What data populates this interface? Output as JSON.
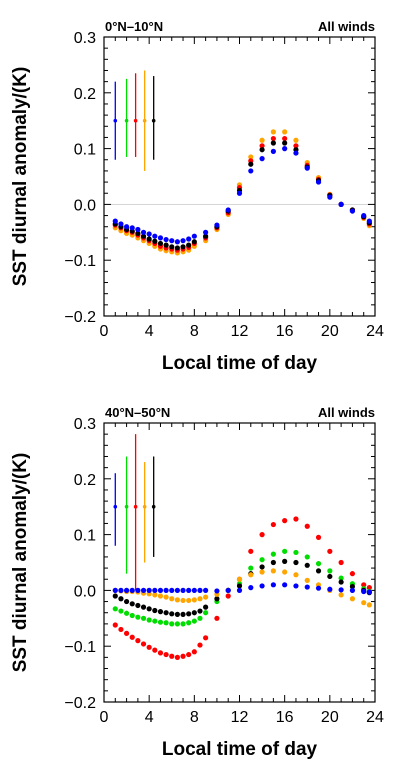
{
  "chart_data": [
    {
      "type": "scatter",
      "region_label": "0°N–10°N",
      "wind_label": "All winds",
      "xlabel": "Local time of day",
      "ylabel": "SST diurnal anomaly/(K)",
      "xlim": [
        0,
        24
      ],
      "ylim": [
        -0.2,
        0.3
      ],
      "xticks": [
        "0",
        "4",
        "8",
        "12",
        "16",
        "20",
        "24"
      ],
      "yticks": [
        "−0.2",
        "−0.1",
        "0.0",
        "0.1",
        "0.2",
        "0.3"
      ],
      "zero_line": true,
      "x": [
        1.0,
        1.5,
        2.0,
        2.5,
        3.0,
        3.5,
        4.0,
        4.5,
        5.0,
        5.5,
        6.0,
        6.5,
        7.0,
        7.5,
        8.0,
        9.0,
        10.0,
        11.0,
        12.0,
        13.0,
        14.0,
        15.0,
        16.0,
        17.0,
        18.0,
        19.0,
        20.0,
        21.0,
        22.0,
        23.0,
        23.5
      ],
      "series": [
        {
          "color": "#ffa500",
          "values": [
            -0.042,
            -0.047,
            -0.052,
            -0.055,
            -0.06,
            -0.065,
            -0.07,
            -0.075,
            -0.08,
            -0.083,
            -0.085,
            -0.087,
            -0.085,
            -0.082,
            -0.075,
            -0.065,
            -0.045,
            -0.018,
            0.035,
            0.085,
            0.115,
            0.13,
            0.13,
            0.115,
            0.075,
            0.048,
            0.018,
            0.0,
            -0.01,
            -0.025,
            -0.038
          ]
        },
        {
          "color": "#ff0000",
          "values": [
            -0.037,
            -0.042,
            -0.047,
            -0.05,
            -0.055,
            -0.06,
            -0.065,
            -0.07,
            -0.075,
            -0.078,
            -0.08,
            -0.082,
            -0.08,
            -0.077,
            -0.07,
            -0.06,
            -0.042,
            -0.015,
            0.03,
            0.078,
            0.105,
            0.118,
            0.118,
            0.105,
            0.07,
            0.045,
            0.017,
            0.0,
            -0.01,
            -0.023,
            -0.035
          ]
        },
        {
          "color": "#000000",
          "values": [
            -0.035,
            -0.04,
            -0.045,
            -0.048,
            -0.052,
            -0.057,
            -0.062,
            -0.066,
            -0.07,
            -0.073,
            -0.076,
            -0.078,
            -0.076,
            -0.073,
            -0.067,
            -0.057,
            -0.04,
            -0.012,
            0.025,
            0.072,
            0.098,
            0.11,
            0.11,
            0.098,
            0.067,
            0.043,
            0.016,
            0.0,
            -0.01,
            -0.022,
            -0.033
          ]
        },
        {
          "color": "#0000ff",
          "values": [
            -0.03,
            -0.035,
            -0.04,
            -0.042,
            -0.045,
            -0.05,
            -0.053,
            -0.057,
            -0.06,
            -0.063,
            -0.065,
            -0.067,
            -0.065,
            -0.062,
            -0.057,
            -0.05,
            -0.037,
            -0.01,
            0.02,
            0.06,
            0.082,
            0.095,
            0.1,
            0.092,
            0.065,
            0.04,
            0.013,
            0.0,
            -0.012,
            -0.02,
            -0.03
          ]
        }
      ],
      "error_bars": [
        {
          "x": 1.0,
          "center": 0.15,
          "low": 0.08,
          "high": 0.22,
          "color": "#0000ff"
        },
        {
          "x": 2.0,
          "center": 0.15,
          "low": 0.085,
          "high": 0.225,
          "color": "#00dd00"
        },
        {
          "x": 2.8,
          "center": 0.15,
          "low": 0.085,
          "high": 0.235,
          "color": "#ff0000"
        },
        {
          "x": 3.6,
          "center": 0.15,
          "low": 0.06,
          "high": 0.24,
          "color": "#ffa500"
        },
        {
          "x": 4.4,
          "center": 0.15,
          "low": 0.08,
          "high": 0.23,
          "color": "#000000"
        }
      ]
    },
    {
      "type": "scatter",
      "region_label": "40°N–50°N",
      "wind_label": "All winds",
      "xlabel": "Local time of day",
      "ylabel": "SST diurnal anomaly/(K)",
      "xlim": [
        0,
        24
      ],
      "ylim": [
        -0.2,
        0.3
      ],
      "xticks": [
        "0",
        "4",
        "8",
        "12",
        "16",
        "20",
        "24"
      ],
      "yticks": [
        "−0.2",
        "−0.1",
        "0.0",
        "0.1",
        "0.2",
        "0.3"
      ],
      "zero_line": false,
      "x": [
        1.0,
        1.5,
        2.0,
        2.5,
        3.0,
        3.5,
        4.0,
        4.5,
        5.0,
        5.5,
        6.0,
        6.5,
        7.0,
        7.5,
        8.0,
        8.5,
        9.0,
        10.0,
        11.0,
        12.0,
        13.0,
        14.0,
        15.0,
        16.0,
        17.0,
        18.0,
        19.0,
        20.0,
        21.0,
        22.0,
        23.0,
        23.5
      ],
      "series": [
        {
          "color": "#ff0000",
          "values": [
            -0.062,
            -0.07,
            -0.077,
            -0.084,
            -0.09,
            -0.096,
            -0.102,
            -0.107,
            -0.112,
            -0.115,
            -0.118,
            -0.12,
            -0.118,
            -0.115,
            -0.11,
            -0.098,
            -0.085,
            -0.05,
            -0.01,
            0.02,
            0.07,
            0.1,
            0.118,
            0.125,
            0.128,
            0.115,
            0.095,
            0.07,
            0.05,
            0.03,
            0.01,
            0.005
          ]
        },
        {
          "color": "#00dd00",
          "values": [
            -0.033,
            -0.037,
            -0.041,
            -0.045,
            -0.048,
            -0.05,
            -0.053,
            -0.055,
            -0.057,
            -0.058,
            -0.06,
            -0.06,
            -0.06,
            -0.058,
            -0.055,
            -0.05,
            -0.04,
            -0.02,
            0.0,
            0.012,
            0.04,
            0.055,
            0.065,
            0.07,
            0.068,
            0.06,
            0.048,
            0.035,
            0.022,
            0.012,
            0.003,
            -0.002
          ]
        },
        {
          "color": "#000000",
          "values": [
            -0.01,
            -0.015,
            -0.02,
            -0.024,
            -0.027,
            -0.03,
            -0.033,
            -0.036,
            -0.038,
            -0.04,
            -0.042,
            -0.043,
            -0.043,
            -0.042,
            -0.04,
            -0.037,
            -0.03,
            -0.015,
            0.0,
            0.008,
            0.03,
            0.042,
            0.05,
            0.052,
            0.05,
            0.045,
            0.035,
            0.025,
            0.015,
            0.007,
            0.0,
            -0.004
          ]
        },
        {
          "color": "#ffa500",
          "values": [
            0.0,
            -0.001,
            -0.002,
            -0.002,
            -0.003,
            -0.005,
            -0.006,
            -0.008,
            -0.01,
            -0.012,
            -0.015,
            -0.017,
            -0.018,
            -0.018,
            -0.017,
            -0.015,
            -0.012,
            -0.007,
            0.0,
            0.02,
            0.028,
            0.033,
            0.035,
            0.033,
            0.028,
            0.018,
            0.01,
            0.0,
            -0.008,
            -0.015,
            -0.022,
            -0.026
          ]
        },
        {
          "color": "#0000ff",
          "values": [
            0.0,
            0.0,
            0.0,
            0.0,
            0.0,
            0.0,
            0.0,
            0.0,
            0.0,
            0.0,
            0.0,
            0.0,
            0.0,
            0.0,
            0.0,
            0.0,
            0.0,
            -0.001,
            0.0,
            0.0,
            0.005,
            0.008,
            0.01,
            0.01,
            0.008,
            0.006,
            0.004,
            0.002,
            0.001,
            0.0,
            -0.002,
            -0.003
          ]
        }
      ],
      "error_bars": [
        {
          "x": 1.0,
          "center": 0.15,
          "low": 0.08,
          "high": 0.21,
          "color": "#0000ff"
        },
        {
          "x": 2.0,
          "center": 0.15,
          "low": 0.03,
          "high": 0.24,
          "color": "#00dd00"
        },
        {
          "x": 2.8,
          "center": 0.15,
          "low": 0.0,
          "high": 0.28,
          "color": "#ff0000"
        },
        {
          "x": 3.6,
          "center": 0.15,
          "low": 0.05,
          "high": 0.23,
          "color": "#ffa500"
        },
        {
          "x": 4.4,
          "center": 0.15,
          "low": 0.06,
          "high": 0.24,
          "color": "#000000"
        }
      ]
    }
  ]
}
